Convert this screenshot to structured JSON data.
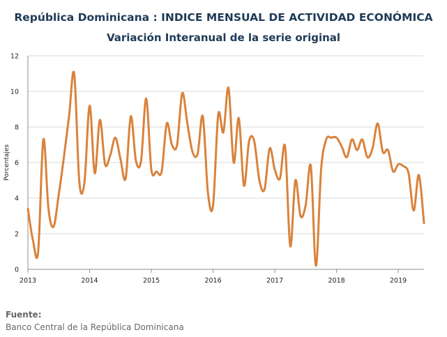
{
  "chart_data": {
    "type": "line",
    "title": "República Dominicana : INDICE MENSUAL DE ACTIVIDAD ECONÓMICA",
    "subtitle": "Variación Interanual de la serie original",
    "ylabel": "Porcentajes",
    "xlabel": "",
    "ylim": [
      0,
      12
    ],
    "yticks": [
      "0",
      "2",
      "4",
      "6",
      "8",
      "10",
      "12"
    ],
    "xticks": [
      "2013",
      "2014",
      "2015",
      "2016",
      "2017",
      "2018",
      "2019"
    ],
    "grid": "horizontal",
    "legend": "none",
    "color": "#d9823b",
    "series": [
      {
        "values": [
          3.4,
          1.6,
          1.0,
          7.3,
          3.4,
          2.4,
          4.2,
          6.3,
          8.6,
          11.0,
          4.9,
          4.9,
          9.2,
          5.4,
          8.4,
          5.9,
          6.4,
          7.4,
          6.2,
          5.1,
          8.6,
          6.1,
          6.1,
          9.6,
          5.6,
          5.5,
          5.5,
          8.2,
          7.0,
          7.0,
          9.9,
          8.2,
          6.6,
          6.5,
          8.6,
          4.3,
          3.6,
          8.7,
          7.7,
          10.2,
          6.0,
          8.5,
          4.7,
          7.2,
          7.2,
          5.0,
          4.5,
          6.8,
          5.6,
          5.1,
          6.9,
          1.3,
          5.0,
          3.0,
          3.6,
          5.8,
          0.2,
          5.6,
          7.3,
          7.4,
          7.4,
          6.9,
          6.3,
          7.3,
          6.7,
          7.3,
          6.3,
          6.8,
          8.2,
          6.6,
          6.7,
          5.5,
          5.9,
          5.8,
          5.4,
          3.3,
          5.3,
          2.6
        ]
      }
    ]
  },
  "source": {
    "label": "Fuente:",
    "text": "Banco Central de la República Dominicana"
  }
}
